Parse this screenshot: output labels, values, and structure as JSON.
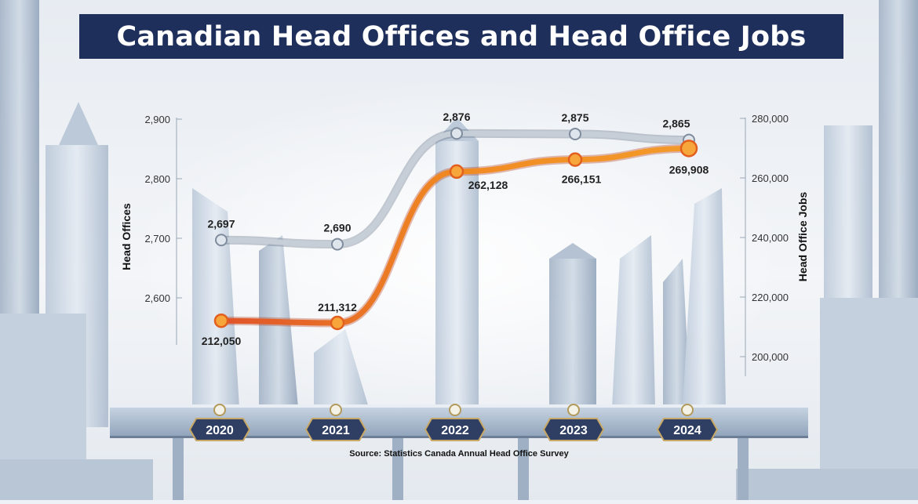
{
  "chart_data": {
    "type": "line",
    "title": "Canadian Head Offices and Head Office Jobs",
    "source": "Source: Statistics Canada Annual Head Office Survey",
    "categories": [
      "2020",
      "2021",
      "2022",
      "2023",
      "2024"
    ],
    "left_axis": {
      "label": "Head Offices",
      "ticks": [
        "2,600",
        "2,700",
        "2,800",
        "2,900"
      ],
      "tick_values": [
        2600,
        2700,
        2800,
        2900
      ],
      "ylim": [
        2600,
        2900
      ]
    },
    "right_axis": {
      "label": "Head Office Jobs",
      "ticks": [
        "200,000",
        "220,000",
        "240,000",
        "260,000",
        "280,000"
      ],
      "tick_values": [
        200000,
        220000,
        240000,
        260000,
        280000
      ],
      "ylim": [
        200000,
        280000
      ]
    },
    "series": [
      {
        "axis": "left",
        "values": [
          2697,
          2690,
          2876,
          2875,
          2865
        ],
        "labels": [
          "2,697",
          "2,690",
          "2,876",
          "2,875",
          "2,865"
        ],
        "color": "#8e99a8"
      },
      {
        "axis": "right",
        "values": [
          212050,
          211312,
          262128,
          266151,
          269908
        ],
        "labels": [
          "212,050",
          "211,312",
          "262,128",
          "266,151",
          "269,908"
        ],
        "color": "#e8701e"
      }
    ],
    "grid": false
  },
  "colors": {
    "title_bg": "#1f2f5c",
    "bridge": "#8da3bd",
    "year_badge": "#2e3f63"
  }
}
